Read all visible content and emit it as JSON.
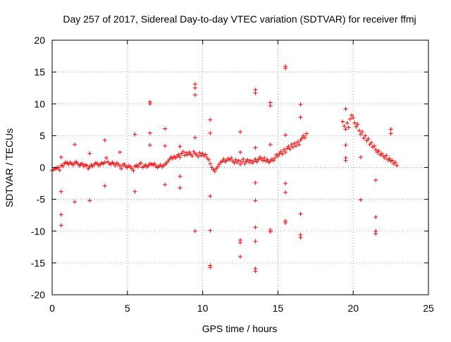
{
  "chart_data": {
    "type": "scatter",
    "title": "Day 257 of 2017, Sidereal Day-to-day VTEC variation (SDTVAR) for receiver ffmj",
    "xlabel": "GPS time / hours",
    "ylabel": "SDTVAR / TECUs",
    "xlim": [
      0,
      25
    ],
    "ylim": [
      -20,
      20
    ],
    "xticks": [
      "0",
      "5",
      "10",
      "15",
      "20",
      "25"
    ],
    "yticks": [
      "-20",
      "-15",
      "-10",
      "-5",
      "0",
      "5",
      "10",
      "15",
      "20"
    ],
    "xtick_values": [
      0,
      5,
      10,
      15,
      20,
      25
    ],
    "ytick_values": [
      -20,
      -15,
      -10,
      -5,
      0,
      5,
      10,
      15,
      20
    ],
    "grid": true,
    "marker": "plus",
    "color": "#ff0000",
    "series": [
      {
        "name": "SDTVAR",
        "points": [
          [
            0.0,
            -0.5
          ],
          [
            0.1,
            -0.3
          ],
          [
            0.2,
            -0.2
          ],
          [
            0.3,
            -0.1
          ],
          [
            0.4,
            0.0
          ],
          [
            0.5,
            -0.4
          ],
          [
            0.6,
            0.3
          ],
          [
            0.7,
            0.2
          ],
          [
            0.8,
            0.6
          ],
          [
            0.9,
            0.8
          ],
          [
            1.0,
            0.7
          ],
          [
            1.1,
            0.5
          ],
          [
            1.2,
            0.8
          ],
          [
            1.3,
            0.6
          ],
          [
            1.4,
            0.4
          ],
          [
            1.5,
            0.7
          ],
          [
            1.6,
            0.9
          ],
          [
            1.7,
            0.6
          ],
          [
            1.8,
            0.3
          ],
          [
            1.9,
            0.5
          ],
          [
            2.0,
            0.6
          ],
          [
            2.1,
            0.2
          ],
          [
            2.2,
            0.4
          ],
          [
            2.3,
            0.3
          ],
          [
            2.4,
            -0.2
          ],
          [
            2.5,
            0.1
          ],
          [
            2.6,
            0.4
          ],
          [
            2.7,
            0.2
          ],
          [
            2.8,
            0.5
          ],
          [
            2.9,
            0.7
          ],
          [
            3.0,
            0.6
          ],
          [
            3.1,
            0.3
          ],
          [
            3.2,
            0.5
          ],
          [
            3.3,
            0.7
          ],
          [
            3.4,
            0.6
          ],
          [
            3.5,
            0.8
          ],
          [
            3.6,
            1.5
          ],
          [
            3.7,
            0.9
          ],
          [
            3.8,
            0.6
          ],
          [
            3.9,
            0.5
          ],
          [
            4.0,
            0.8
          ],
          [
            4.1,
            0.6
          ],
          [
            4.2,
            0.3
          ],
          [
            4.3,
            0.7
          ],
          [
            4.4,
            0.5
          ],
          [
            4.5,
            0.2
          ],
          [
            4.6,
            -0.2
          ],
          [
            4.7,
            0.4
          ],
          [
            4.8,
            0.5
          ],
          [
            4.9,
            0.1
          ],
          [
            5.0,
            0.0
          ],
          [
            5.1,
            0.3
          ],
          [
            5.2,
            0.1
          ],
          [
            5.3,
            -0.2
          ],
          [
            5.4,
            -0.5
          ],
          [
            5.5,
            0.2
          ],
          [
            5.6,
            0.3
          ],
          [
            5.7,
            0.1
          ],
          [
            5.8,
            0.5
          ],
          [
            5.9,
            0.7
          ],
          [
            6.0,
            0.0
          ],
          [
            6.1,
            0.2
          ],
          [
            6.2,
            0.4
          ],
          [
            6.3,
            0.1
          ],
          [
            6.4,
            0.3
          ],
          [
            6.5,
            0.6
          ],
          [
            6.6,
            0.5
          ],
          [
            6.7,
            0.4
          ],
          [
            6.8,
            0.6
          ],
          [
            6.9,
            0.2
          ],
          [
            7.0,
            0.0
          ],
          [
            7.1,
            0.2
          ],
          [
            7.2,
            0.4
          ],
          [
            7.3,
            0.1
          ],
          [
            7.4,
            0.3
          ],
          [
            7.5,
            0.5
          ],
          [
            7.6,
            0.7
          ],
          [
            7.7,
            1.0
          ],
          [
            7.8,
            1.3
          ],
          [
            7.9,
            1.6
          ],
          [
            8.0,
            1.4
          ],
          [
            8.1,
            1.7
          ],
          [
            8.2,
            1.5
          ],
          [
            8.3,
            1.8
          ],
          [
            8.4,
            2.0
          ],
          [
            8.5,
            1.6
          ],
          [
            8.6,
            2.2
          ],
          [
            8.7,
            2.5
          ],
          [
            8.8,
            1.9
          ],
          [
            8.9,
            2.3
          ],
          [
            9.0,
            2.0
          ],
          [
            9.1,
            2.4
          ],
          [
            9.2,
            2.1
          ],
          [
            9.3,
            1.8
          ],
          [
            9.4,
            2.5
          ],
          [
            9.5,
            2.2
          ],
          [
            9.6,
            2.0
          ],
          [
            9.7,
            1.7
          ],
          [
            9.8,
            2.3
          ],
          [
            9.9,
            1.9
          ],
          [
            10.0,
            2.2
          ],
          [
            10.1,
            1.8
          ],
          [
            10.2,
            2.0
          ],
          [
            10.3,
            1.5
          ],
          [
            10.4,
            1.2
          ],
          [
            10.5,
            0.6
          ],
          [
            10.6,
            0.0
          ],
          [
            10.7,
            -0.3
          ],
          [
            10.8,
            -0.6
          ],
          [
            10.9,
            -0.2
          ],
          [
            11.0,
            0.1
          ],
          [
            11.1,
            0.5
          ],
          [
            11.2,
            0.8
          ],
          [
            11.3,
            1.0
          ],
          [
            11.4,
            1.3
          ],
          [
            11.5,
            0.9
          ],
          [
            11.6,
            1.1
          ],
          [
            11.7,
            1.4
          ],
          [
            11.8,
            1.2
          ],
          [
            11.9,
            1.5
          ],
          [
            12.0,
            1.0
          ],
          [
            12.1,
            0.7
          ],
          [
            12.2,
            1.2
          ],
          [
            12.3,
            0.8
          ],
          [
            12.4,
            1.1
          ],
          [
            12.5,
            0.5
          ],
          [
            12.6,
            0.9
          ],
          [
            12.7,
            1.3
          ],
          [
            12.8,
            0.6
          ],
          [
            12.9,
            1.0
          ],
          [
            13.0,
            1.2
          ],
          [
            13.1,
            0.8
          ],
          [
            13.2,
            1.1
          ],
          [
            13.3,
            0.7
          ],
          [
            13.4,
            1.0
          ],
          [
            13.5,
            1.3
          ],
          [
            13.6,
            0.9
          ],
          [
            13.7,
            1.2
          ],
          [
            13.8,
            1.6
          ],
          [
            13.9,
            1.4
          ],
          [
            14.0,
            1.1
          ],
          [
            14.1,
            1.5
          ],
          [
            14.2,
            1.0
          ],
          [
            14.3,
            1.2
          ],
          [
            14.4,
            0.8
          ],
          [
            14.5,
            1.0
          ],
          [
            14.6,
            1.3
          ],
          [
            14.7,
            1.1
          ],
          [
            14.8,
            1.5
          ],
          [
            14.9,
            2.0
          ],
          [
            15.0,
            1.8
          ],
          [
            15.1,
            2.2
          ],
          [
            15.2,
            2.5
          ],
          [
            15.3,
            2.1
          ],
          [
            15.4,
            2.8
          ],
          [
            15.5,
            2.4
          ],
          [
            15.6,
            3.0
          ],
          [
            15.7,
            3.3
          ],
          [
            15.8,
            2.9
          ],
          [
            15.9,
            3.6
          ],
          [
            16.0,
            3.2
          ],
          [
            16.1,
            3.8
          ],
          [
            16.2,
            3.4
          ],
          [
            16.3,
            4.0
          ],
          [
            16.4,
            3.6
          ],
          [
            16.5,
            4.3
          ],
          [
            16.6,
            4.6
          ],
          [
            16.7,
            5.0
          ],
          [
            16.8,
            4.7
          ],
          [
            16.9,
            5.3
          ],
          [
            19.3,
            7.2
          ],
          [
            19.4,
            6.5
          ],
          [
            19.5,
            6.0
          ],
          [
            19.6,
            7.0
          ],
          [
            19.7,
            6.3
          ],
          [
            19.8,
            7.6
          ],
          [
            19.9,
            8.2
          ],
          [
            20.0,
            7.8
          ],
          [
            20.1,
            7.0
          ],
          [
            20.2,
            6.4
          ],
          [
            20.3,
            6.8
          ],
          [
            20.4,
            5.8
          ],
          [
            20.5,
            5.2
          ],
          [
            20.6,
            5.6
          ],
          [
            20.7,
            4.6
          ],
          [
            20.8,
            5.0
          ],
          [
            20.9,
            4.2
          ],
          [
            21.0,
            4.5
          ],
          [
            21.1,
            3.6
          ],
          [
            21.2,
            3.9
          ],
          [
            21.3,
            3.2
          ],
          [
            21.4,
            3.4
          ],
          [
            21.5,
            2.8
          ],
          [
            21.6,
            2.4
          ],
          [
            21.7,
            2.6
          ],
          [
            21.8,
            2.0
          ],
          [
            21.9,
            2.2
          ],
          [
            22.0,
            1.8
          ],
          [
            22.1,
            1.5
          ],
          [
            22.2,
            1.9
          ],
          [
            22.3,
            1.2
          ],
          [
            22.4,
            1.4
          ],
          [
            22.5,
            1.0
          ],
          [
            22.6,
            1.1
          ],
          [
            22.7,
            0.6
          ],
          [
            22.8,
            0.8
          ],
          [
            22.9,
            0.3
          ],
          [
            0.6,
            1.6
          ],
          [
            0.6,
            -3.8
          ],
          [
            0.6,
            -7.4
          ],
          [
            0.6,
            -9.1
          ],
          [
            1.5,
            3.6
          ],
          [
            1.5,
            -5.4
          ],
          [
            2.5,
            2.2
          ],
          [
            2.5,
            -5.2
          ],
          [
            3.5,
            4.3
          ],
          [
            3.5,
            -2.9
          ],
          [
            4.5,
            2.4
          ],
          [
            5.5,
            5.2
          ],
          [
            5.5,
            -3.8
          ],
          [
            6.5,
            10.3
          ],
          [
            6.5,
            10.0
          ],
          [
            6.5,
            5.4
          ],
          [
            6.5,
            3.5
          ],
          [
            7.5,
            6.1
          ],
          [
            7.5,
            3.4
          ],
          [
            7.5,
            -2.7
          ],
          [
            8.5,
            3.3
          ],
          [
            8.5,
            -1.4
          ],
          [
            8.5,
            -3.2
          ],
          [
            9.5,
            13.1
          ],
          [
            9.5,
            12.5
          ],
          [
            9.5,
            11.4
          ],
          [
            9.5,
            4.7
          ],
          [
            9.5,
            -10.0
          ],
          [
            10.5,
            7.5
          ],
          [
            10.5,
            5.4
          ],
          [
            10.5,
            -4.5
          ],
          [
            10.5,
            -9.9
          ],
          [
            10.5,
            -15.4
          ],
          [
            10.5,
            -15.7
          ],
          [
            12.5,
            5.6
          ],
          [
            12.5,
            2.4
          ],
          [
            12.5,
            -11.4
          ],
          [
            12.5,
            -11.8
          ],
          [
            12.5,
            -14.0
          ],
          [
            13.5,
            12.2
          ],
          [
            13.5,
            11.7
          ],
          [
            13.5,
            3.1
          ],
          [
            13.5,
            -2.4
          ],
          [
            13.5,
            -5.2
          ],
          [
            13.5,
            -9.4
          ],
          [
            13.5,
            -11.6
          ],
          [
            13.5,
            -15.9
          ],
          [
            13.5,
            -16.3
          ],
          [
            14.5,
            10.2
          ],
          [
            14.5,
            9.7
          ],
          [
            14.5,
            3.6
          ],
          [
            14.5,
            -9.8
          ],
          [
            14.5,
            -10.1
          ],
          [
            15.5,
            15.9
          ],
          [
            15.5,
            15.6
          ],
          [
            15.5,
            5.1
          ],
          [
            15.5,
            -2.5
          ],
          [
            15.5,
            -3.9
          ],
          [
            15.5,
            -8.4
          ],
          [
            15.5,
            -8.7
          ],
          [
            16.5,
            9.9
          ],
          [
            16.5,
            7.9
          ],
          [
            16.5,
            -7.3
          ],
          [
            16.5,
            -10.6
          ],
          [
            16.5,
            -11.0
          ],
          [
            19.5,
            9.2
          ],
          [
            19.5,
            3.5
          ],
          [
            19.5,
            1.5
          ],
          [
            19.5,
            1.1
          ],
          [
            20.5,
            1.6
          ],
          [
            20.5,
            -5.1
          ],
          [
            21.5,
            -2.0
          ],
          [
            21.5,
            -7.8
          ],
          [
            21.5,
            -10.0
          ],
          [
            21.5,
            -10.4
          ],
          [
            22.5,
            6.0
          ],
          [
            22.5,
            5.3
          ]
        ]
      }
    ]
  }
}
